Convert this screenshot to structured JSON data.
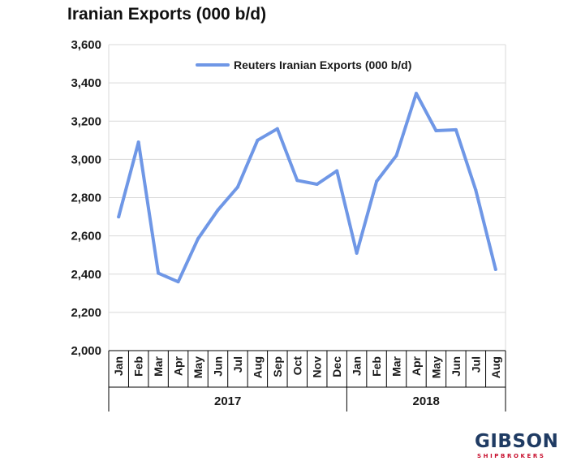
{
  "chart_data": {
    "type": "line",
    "title": "Iranian Exports (000 b/d)",
    "x": {
      "groups": [
        {
          "label": "2017",
          "months": [
            "Jan",
            "Feb",
            "Mar",
            "Apr",
            "May",
            "Jun",
            "Jul",
            "Aug",
            "Sep",
            "Oct",
            "Nov",
            "Dec"
          ]
        },
        {
          "label": "2018",
          "months": [
            "Jan",
            "Feb",
            "Mar",
            "Apr",
            "May",
            "Jun",
            "Jul",
            "Aug"
          ]
        }
      ]
    },
    "series": [
      {
        "name": "Reuters Iranian Exports (000 b/d)",
        "color": "#6f97e6",
        "values": [
          2700,
          3090,
          2405,
          2360,
          2585,
          2735,
          2855,
          3100,
          3160,
          2890,
          2870,
          2940,
          2510,
          2885,
          3020,
          3345,
          3150,
          3155,
          2840,
          2425
        ]
      }
    ],
    "ylim": [
      2000,
      3600
    ],
    "yticks": [
      2000,
      2200,
      2400,
      2600,
      2800,
      3000,
      3200,
      3400,
      3600
    ],
    "ytick_labels": [
      "2,000",
      "2,200",
      "2,400",
      "2,600",
      "2,800",
      "3,000",
      "3,200",
      "3,400",
      "3,600"
    ],
    "grid": true,
    "legend": "top-center"
  },
  "logo": {
    "main": "GIBSON",
    "sub": "SHIPBROKERS"
  },
  "colors": {
    "gridline": "#d9d9d9",
    "axis": "#000000",
    "brand_navy": "#1f3b63",
    "brand_red": "#c8102e"
  }
}
